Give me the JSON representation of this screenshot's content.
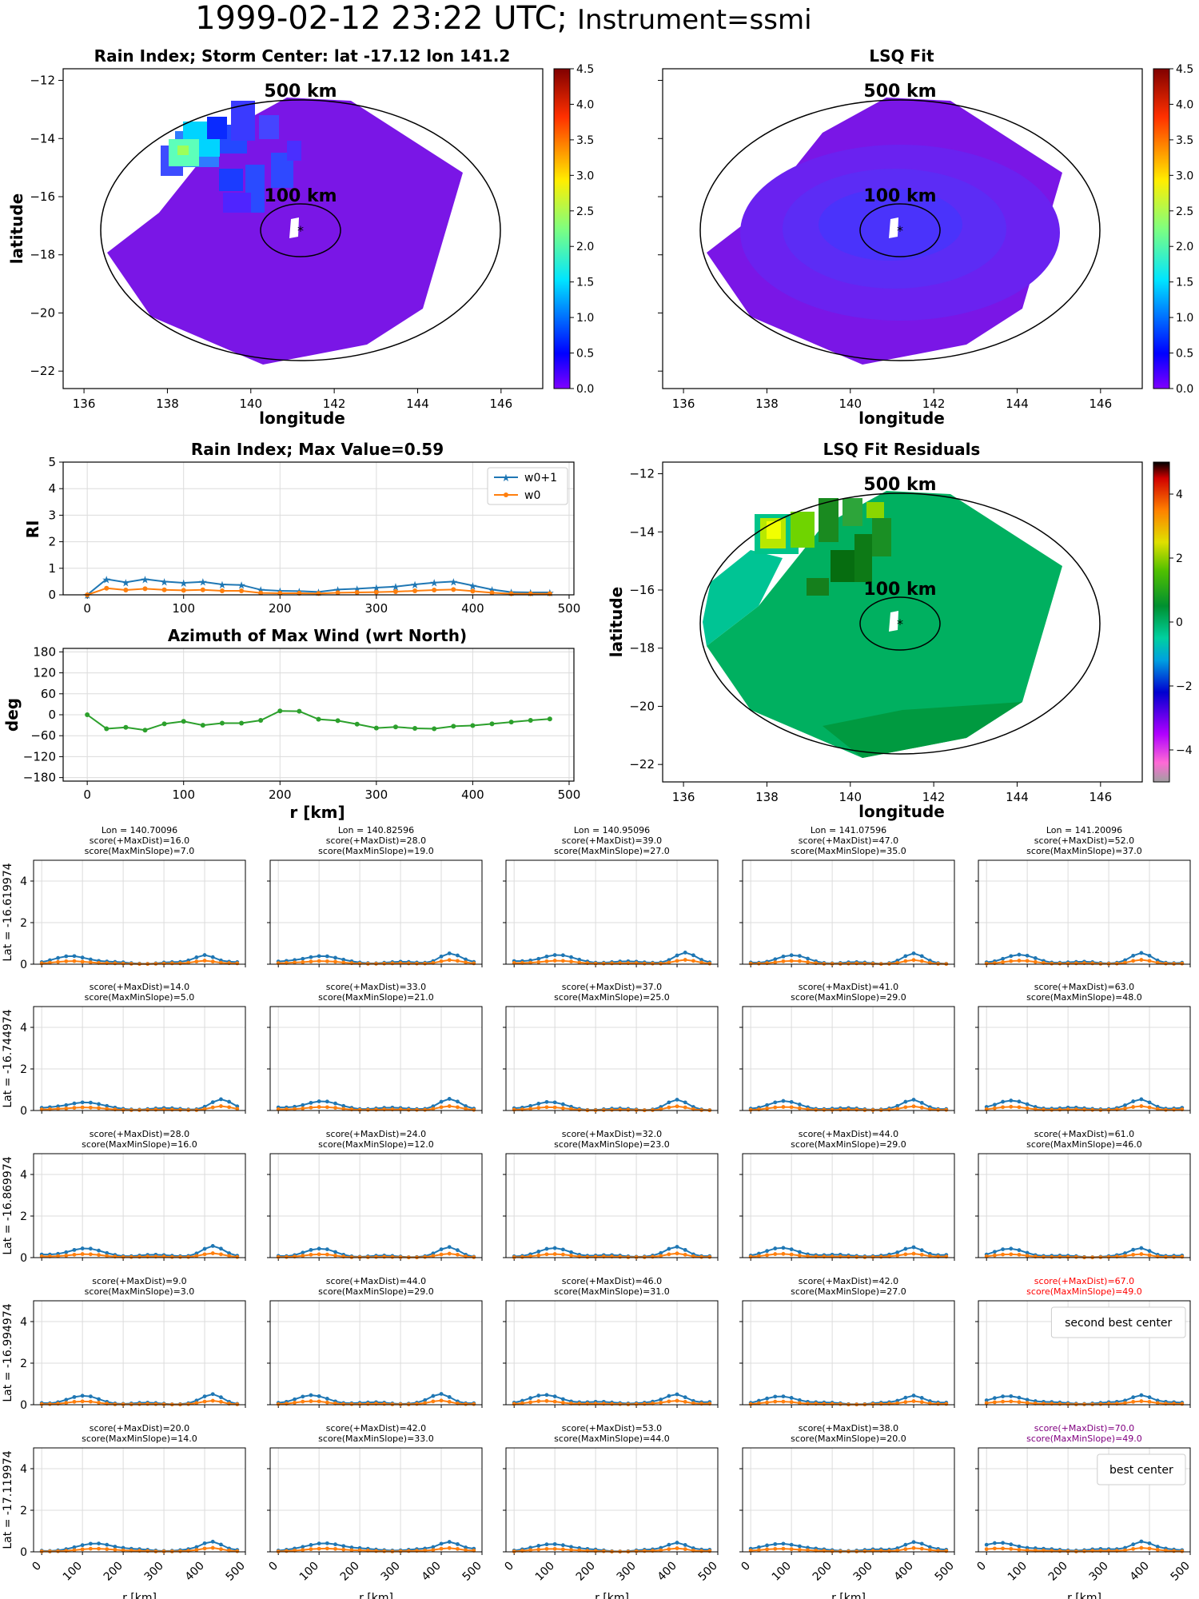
{
  "suptitle": {
    "main": "1999-02-12 23:22 UTC;",
    "instrument": "Instrument=ssmi"
  },
  "maps": [
    {
      "id": "rain-index-map",
      "title": "Rain Index; Storm Center: lat -17.12 lon 141.2",
      "xlabel": "longitude",
      "ylabel": "latitude",
      "xticks": [
        136,
        138,
        140,
        142,
        144,
        146
      ],
      "yticks": [
        -12,
        -14,
        -16,
        -18,
        -20,
        -22
      ],
      "xlim": [
        135.5,
        147
      ],
      "ylim": [
        -22.6,
        -11.6
      ],
      "ring_labels": [
        "500 km",
        "100 km"
      ],
      "colorbar": {
        "ticks": [
          "0.0",
          "0.5",
          "1.0",
          "1.5",
          "2.0",
          "2.5",
          "3.0",
          "3.5",
          "4.0",
          "4.5"
        ],
        "range": [
          0,
          4.5
        ],
        "cmap": "jet"
      }
    },
    {
      "id": "lsq-fit-map",
      "title": "LSQ Fit",
      "xlabel": "longitude",
      "ylabel": "",
      "xticks": [
        136,
        138,
        140,
        142,
        144,
        146
      ],
      "yticks": [],
      "xlim": [
        135.5,
        147
      ],
      "ylim": [
        -22.6,
        -11.6
      ],
      "ring_labels": [
        "500 km",
        "100 km"
      ],
      "colorbar": {
        "ticks": [
          "0.0",
          "0.5",
          "1.0",
          "1.5",
          "2.0",
          "2.5",
          "3.0",
          "3.5",
          "4.0",
          "4.5"
        ],
        "range": [
          0,
          4.5
        ],
        "cmap": "jet"
      }
    },
    {
      "id": "lsq-residuals-map",
      "title": "LSQ Fit Residuals",
      "xlabel": "longitude",
      "ylabel": "latitude",
      "xticks": [
        136,
        138,
        140,
        142,
        144,
        146
      ],
      "yticks": [
        -12,
        -14,
        -16,
        -18,
        -20,
        -22
      ],
      "xlim": [
        135.5,
        147
      ],
      "ylim": [
        -22.6,
        -11.6
      ],
      "ring_labels": [
        "500 km",
        "100 km"
      ],
      "colorbar": {
        "ticks": [
          "4",
          "2",
          "0",
          "−2",
          "−4"
        ],
        "range": [
          -5,
          5
        ],
        "cmap": "nipy_spectral_r"
      }
    }
  ],
  "chart_data": [
    {
      "type": "line",
      "id": "rain-index-profile",
      "title": "Rain Index; Max Value=0.59",
      "ylabel": "RI",
      "xlabel": "",
      "xticks": [
        0,
        100,
        200,
        300,
        400,
        500
      ],
      "yticks": [
        0,
        1,
        2,
        3,
        4,
        5
      ],
      "xlim": [
        -25,
        505
      ],
      "ylim": [
        0,
        5
      ],
      "grid": true,
      "legend": "top-right",
      "x": [
        0,
        20,
        40,
        60,
        80,
        100,
        120,
        140,
        160,
        180,
        200,
        220,
        240,
        260,
        280,
        300,
        320,
        340,
        360,
        380,
        400,
        420,
        440,
        460,
        480
      ],
      "series": [
        {
          "name": "w0+1",
          "color": "#1f77b4",
          "marker": "star",
          "values": [
            0.0,
            0.59,
            0.47,
            0.59,
            0.5,
            0.45,
            0.49,
            0.39,
            0.37,
            0.19,
            0.15,
            0.14,
            0.11,
            0.2,
            0.23,
            0.27,
            0.31,
            0.39,
            0.46,
            0.5,
            0.35,
            0.2,
            0.1,
            0.09,
            0.09
          ]
        },
        {
          "name": "w0",
          "color": "#ff7f0e",
          "marker": "dot",
          "values": [
            0.0,
            0.25,
            0.18,
            0.23,
            0.19,
            0.17,
            0.19,
            0.15,
            0.15,
            0.07,
            0.06,
            0.06,
            0.05,
            0.08,
            0.09,
            0.1,
            0.12,
            0.15,
            0.18,
            0.2,
            0.14,
            0.08,
            0.04,
            0.04,
            0.04
          ]
        }
      ]
    },
    {
      "type": "line",
      "id": "azimuth-max-wind",
      "title": "Azimuth of Max Wind (wrt North)",
      "ylabel": "deg",
      "xlabel": "r [km]",
      "xticks": [
        0,
        100,
        200,
        300,
        400,
        500
      ],
      "yticks": [
        180,
        120,
        60,
        0,
        -60,
        -120,
        -180
      ],
      "xlim": [
        -25,
        505
      ],
      "ylim": [
        -190,
        190
      ],
      "grid": true,
      "x": [
        0,
        20,
        40,
        60,
        80,
        100,
        120,
        140,
        160,
        180,
        200,
        220,
        240,
        260,
        280,
        300,
        320,
        340,
        360,
        380,
        400,
        420,
        440,
        460,
        480
      ],
      "series": [
        {
          "color": "#2ca02c",
          "marker": "dot",
          "values": [
            0,
            -40,
            -36,
            -44,
            -26,
            -19,
            -30,
            -24,
            -24,
            -16,
            11,
            10,
            -13,
            -17,
            -27,
            -38,
            -35,
            -39,
            -40,
            -33,
            -31,
            -26,
            -21,
            -16,
            -12
          ]
        }
      ]
    },
    {
      "type": "line",
      "id": "center-search-grid",
      "grid_rows": 5,
      "grid_cols": 5,
      "x": [
        0,
        20,
        40,
        60,
        80,
        100,
        120,
        140,
        160,
        180,
        200,
        220,
        240,
        260,
        280,
        300,
        320,
        340,
        360,
        380,
        400,
        420,
        440,
        460,
        480
      ],
      "xticks": [
        0,
        100,
        200,
        300,
        400,
        500
      ],
      "xtick_labels": [
        "0",
        "100",
        "200",
        "300",
        "400",
        "500"
      ],
      "yticks": [
        0,
        2,
        4
      ],
      "xlim": [
        -20,
        500
      ],
      "ylim": [
        0,
        5
      ],
      "xlabel": "r [km]",
      "row_labels": [
        "Lat = -16.619974",
        "Lat = -16.744974",
        "Lat = -16.869974",
        "Lat = -16.994974",
        "Lat = -17.119974"
      ],
      "col_lons": [
        "Lon = 140.70096",
        "Lon = 140.82596",
        "Lon = 140.95096",
        "Lon = 141.07596",
        "Lon = 141.20096"
      ],
      "series_colors": {
        "w0+1": "#1f77b4",
        "w0": "#ff7f0e"
      },
      "cells": [
        [
          {
            "score1": "score(+MaxDist)=16.0",
            "score2": "score(MaxMinSlope)=7.0",
            "peak": [
              80,
              400
            ]
          },
          {
            "score1": "score(+MaxDist)=28.0",
            "score2": "score(MaxMinSlope)=19.0",
            "peak": [
              100,
              420
            ]
          },
          {
            "score1": "score(+MaxDist)=39.0",
            "score2": "score(MaxMinSlope)=27.0",
            "peak": [
              100,
              420
            ]
          },
          {
            "score1": "score(+MaxDist)=47.0",
            "score2": "score(MaxMinSlope)=35.0",
            "peak": [
              100,
              400
            ]
          },
          {
            "score1": "score(+MaxDist)=52.0",
            "score2": "score(MaxMinSlope)=37.0",
            "peak": [
              80,
              380
            ]
          }
        ],
        [
          {
            "score1": "score(+MaxDist)=14.0",
            "score2": "score(MaxMinSlope)=5.0",
            "peak": [
              100,
              440
            ]
          },
          {
            "score1": "score(+MaxDist)=33.0",
            "score2": "score(MaxMinSlope)=21.0",
            "peak": [
              100,
              420
            ]
          },
          {
            "score1": "score(+MaxDist)=37.0",
            "score2": "score(MaxMinSlope)=25.0",
            "peak": [
              80,
              400
            ]
          },
          {
            "score1": "score(+MaxDist)=41.0",
            "score2": "score(MaxMinSlope)=29.0",
            "peak": [
              80,
              400
            ]
          },
          {
            "score1": "score(+MaxDist)=63.0",
            "score2": "score(MaxMinSlope)=48.0",
            "peak": [
              60,
              380
            ]
          }
        ],
        [
          {
            "score1": "score(+MaxDist)=28.0",
            "score2": "score(MaxMinSlope)=16.0",
            "peak": [
              100,
              420
            ]
          },
          {
            "score1": "score(+MaxDist)=24.0",
            "score2": "score(MaxMinSlope)=12.0",
            "peak": [
              100,
              420
            ]
          },
          {
            "score1": "score(+MaxDist)=32.0",
            "score2": "score(MaxMinSlope)=23.0",
            "peak": [
              100,
              400
            ]
          },
          {
            "score1": "score(+MaxDist)=44.0",
            "score2": "score(MaxMinSlope)=29.0",
            "peak": [
              80,
              400
            ]
          },
          {
            "score1": "score(+MaxDist)=61.0",
            "score2": "score(MaxMinSlope)=46.0",
            "peak": [
              60,
              380
            ]
          }
        ],
        [
          {
            "score1": "score(+MaxDist)=9.0",
            "score2": "score(MaxMinSlope)=3.0",
            "peak": [
              100,
              420
            ]
          },
          {
            "score1": "score(+MaxDist)=44.0",
            "score2": "score(MaxMinSlope)=29.0",
            "peak": [
              80,
              400
            ]
          },
          {
            "score1": "score(+MaxDist)=46.0",
            "score2": "score(MaxMinSlope)=31.0",
            "peak": [
              80,
              400
            ]
          },
          {
            "score1": "score(+MaxDist)=42.0",
            "score2": "score(MaxMinSlope)=27.0",
            "peak": [
              80,
              400
            ]
          },
          {
            "score1": "score(+MaxDist)=67.0",
            "score2": "score(MaxMinSlope)=49.0",
            "peak": [
              60,
              380
            ],
            "color": "#ff0000",
            "legend": "second best center"
          }
        ],
        [
          {
            "score1": "score(+MaxDist)=20.0",
            "score2": "score(MaxMinSlope)=14.0",
            "peak": [
              140,
              420
            ]
          },
          {
            "score1": "score(+MaxDist)=42.0",
            "score2": "score(MaxMinSlope)=33.0",
            "peak": [
              120,
              420
            ]
          },
          {
            "score1": "score(+MaxDist)=53.0",
            "score2": "score(MaxMinSlope)=44.0",
            "peak": [
              100,
              400
            ]
          },
          {
            "score1": "score(+MaxDist)=38.0",
            "score2": "score(MaxMinSlope)=20.0",
            "peak": [
              80,
              400
            ]
          },
          {
            "score1": "score(+MaxDist)=70.0",
            "score2": "score(MaxMinSlope)=49.0",
            "peak": [
              40,
              380
            ],
            "color": "#800080",
            "legend": "best center"
          }
        ]
      ]
    }
  ]
}
